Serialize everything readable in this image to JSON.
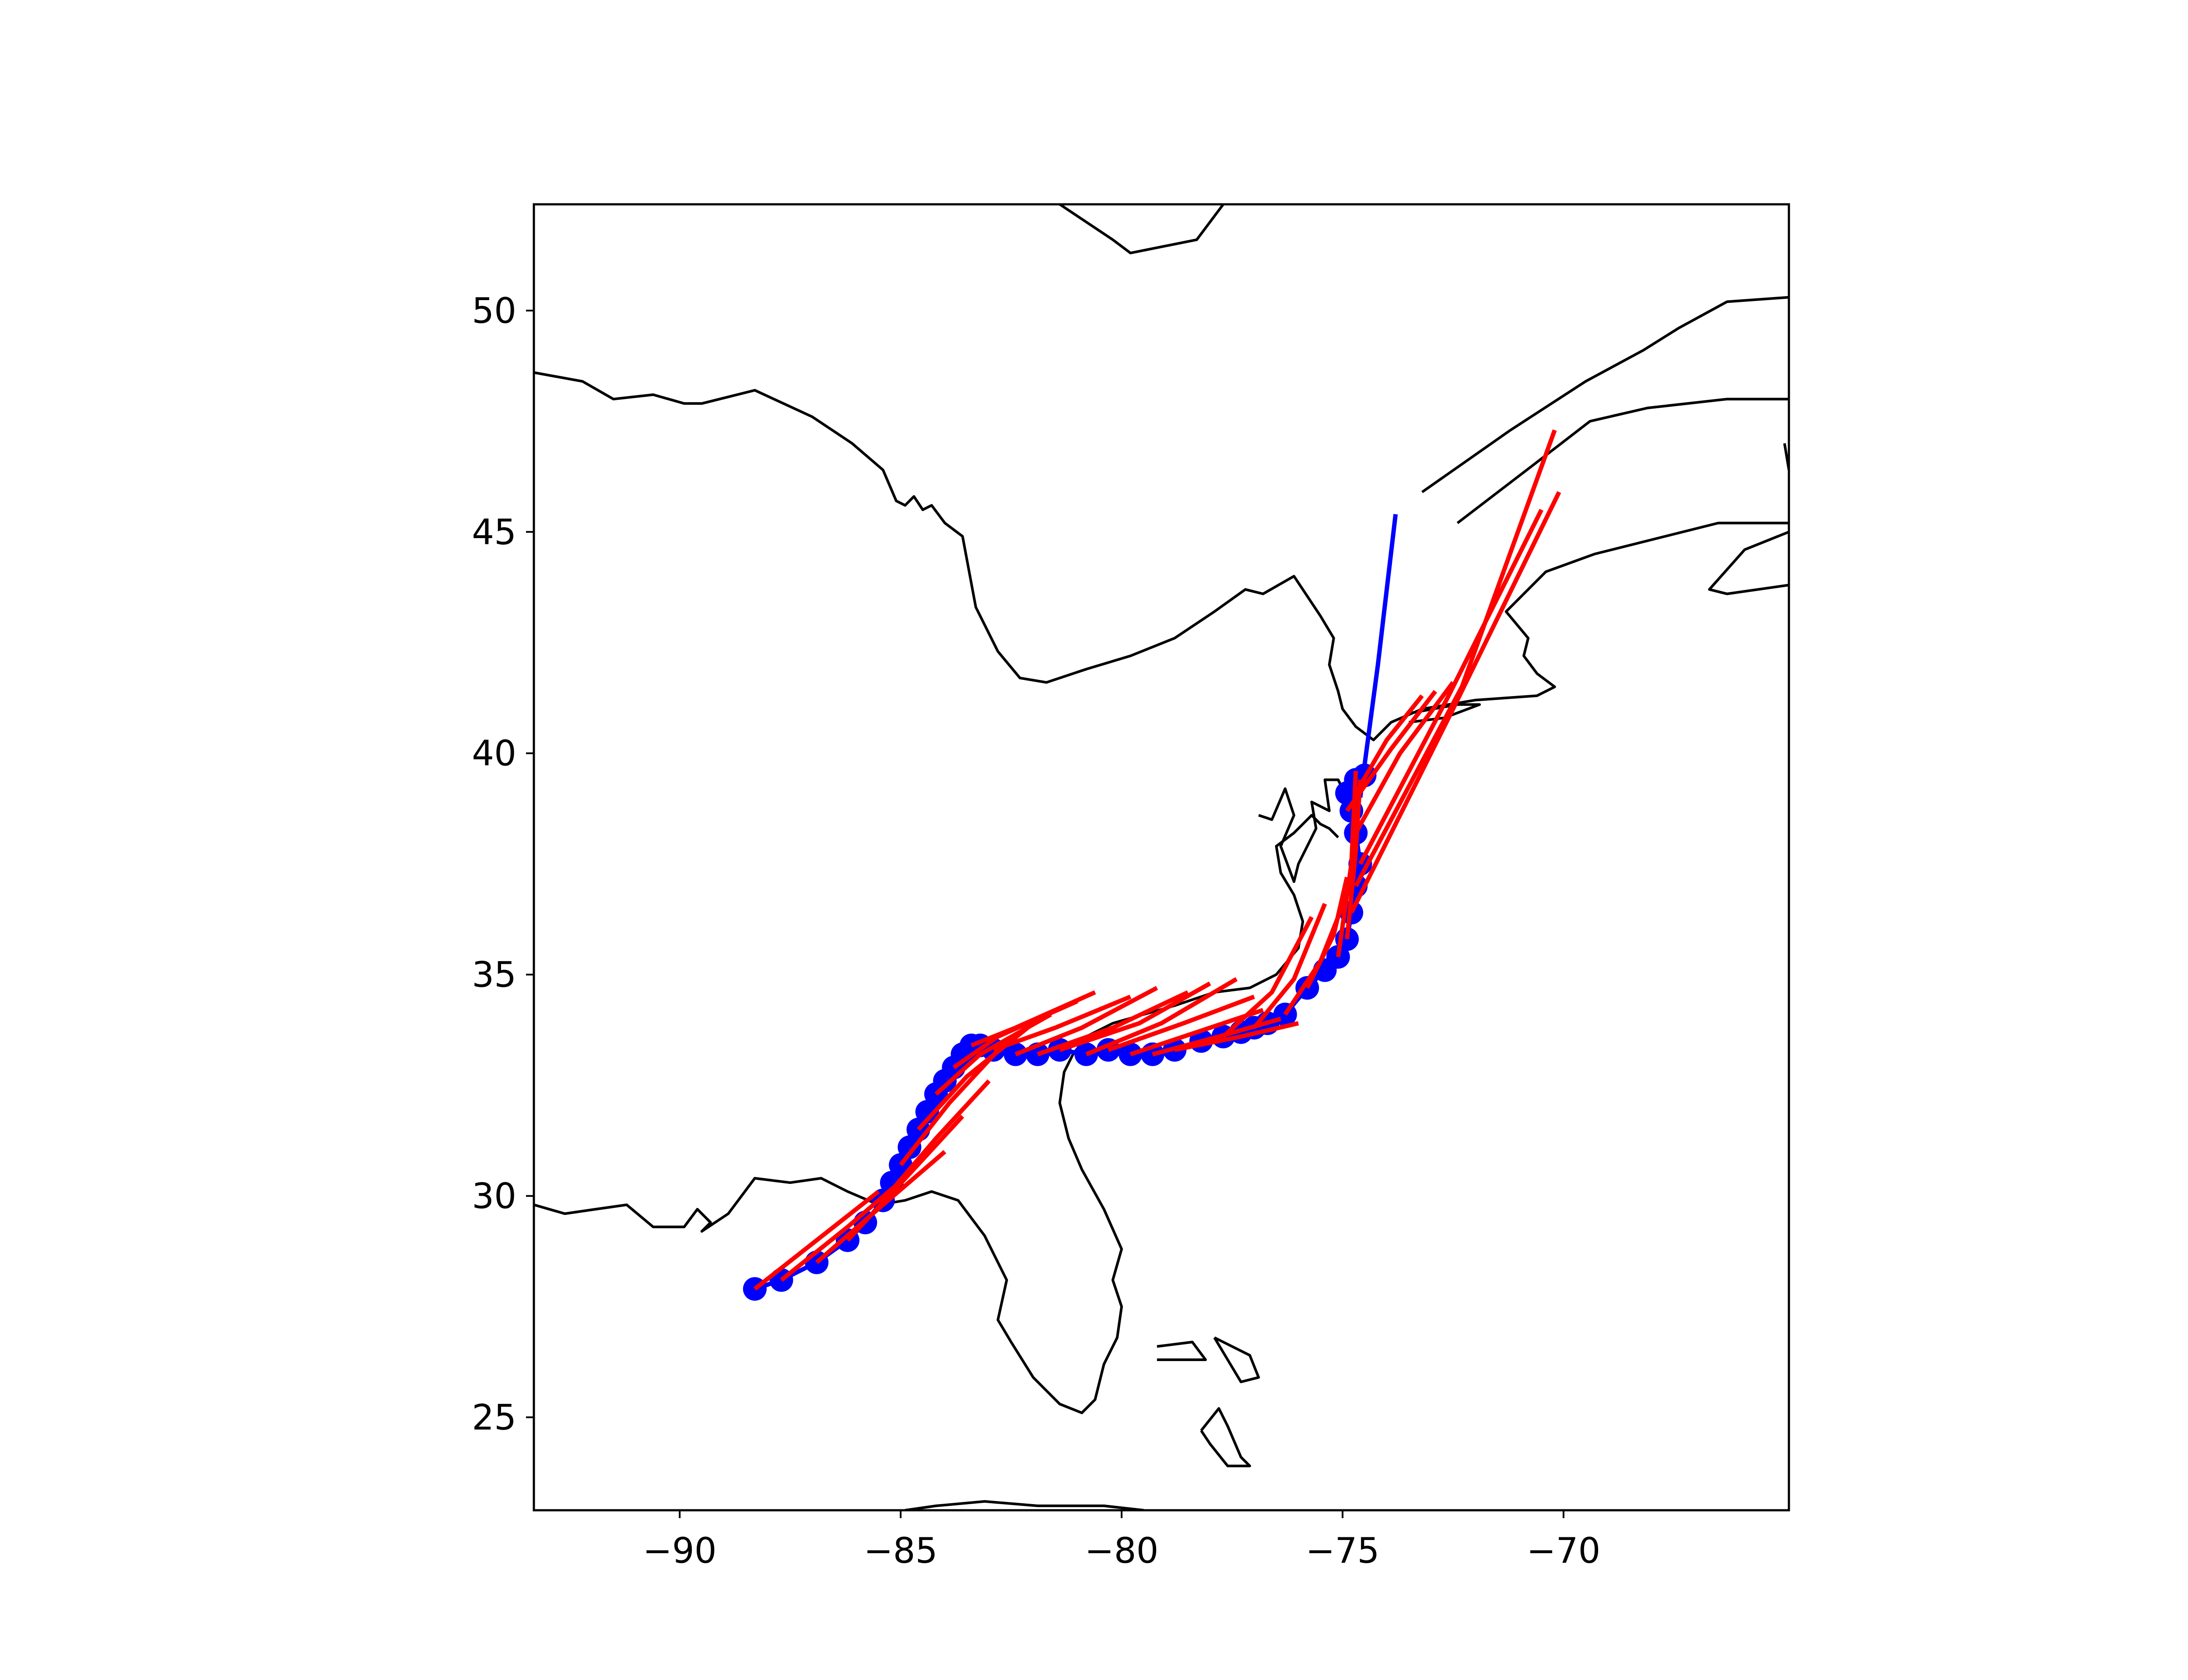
{
  "chart_data": {
    "type": "map-track",
    "title": "",
    "xlabel": "",
    "ylabel": "",
    "xlim": [
      -93.3,
      -64.9
    ],
    "ylim": [
      22.9,
      52.4
    ],
    "xticks": [
      -90,
      -85,
      -80,
      -75,
      -70
    ],
    "yticks": [
      25,
      30,
      35,
      40,
      45,
      50
    ],
    "xtick_labels": [
      "−90",
      "−85",
      "−80",
      "−75",
      "−70"
    ],
    "ytick_labels": [
      "25",
      "30",
      "35",
      "40",
      "45",
      "50"
    ],
    "grid": false,
    "legend": "none",
    "colors": {
      "observed": "#0000ff",
      "forecast": "#ff0000",
      "coast": "#000000",
      "frame": "#000000"
    },
    "observed_track": {
      "lon": [
        -88.3,
        -87.7,
        -86.9,
        -86.2,
        -85.8,
        -85.4,
        -85.2,
        -85.0,
        -84.8,
        -84.6,
        -84.4,
        -84.2,
        -84.0,
        -83.8,
        -83.6,
        -83.4,
        -83.2,
        -82.9,
        -82.4,
        -81.9,
        -81.4,
        -80.8,
        -80.3,
        -79.8,
        -79.3,
        -78.8,
        -78.2,
        -77.7,
        -77.3,
        -77.0,
        -76.7,
        -76.3,
        -75.8,
        -75.4,
        -75.1,
        -74.9,
        -74.8,
        -74.7,
        -74.6,
        -74.7,
        -74.8,
        -74.9,
        -74.7,
        -74.5
      ],
      "lat": [
        27.9,
        28.1,
        28.5,
        29.0,
        29.4,
        29.9,
        30.3,
        30.7,
        31.1,
        31.5,
        31.9,
        32.3,
        32.6,
        32.9,
        33.2,
        33.4,
        33.4,
        33.3,
        33.2,
        33.2,
        33.3,
        33.2,
        33.3,
        33.2,
        33.2,
        33.3,
        33.5,
        33.6,
        33.7,
        33.8,
        33.9,
        34.1,
        34.7,
        35.1,
        35.4,
        35.8,
        36.4,
        37.0,
        37.5,
        38.2,
        38.7,
        39.1,
        39.4,
        39.5
      ],
      "extension": {
        "lon": [
          -74.6,
          -74.2,
          -73.8
        ],
        "lat": [
          39.0,
          42.0,
          45.4
        ]
      }
    },
    "forecast_tracks": [
      {
        "lon": [
          -88.3,
          -86.9,
          -85.5
        ],
        "lat": [
          27.9,
          29.0,
          30.1
        ]
      },
      {
        "lon": [
          -87.7,
          -86.2,
          -84.8
        ],
        "lat": [
          28.1,
          29.3,
          30.5
        ]
      },
      {
        "lon": [
          -86.9,
          -85.4,
          -84.0
        ],
        "lat": [
          28.5,
          29.8,
          31.0
        ]
      },
      {
        "lon": [
          -86.2,
          -84.8,
          -83.6
        ],
        "lat": [
          29.0,
          30.5,
          31.8
        ]
      },
      {
        "lon": [
          -85.4,
          -84.2,
          -83.0
        ],
        "lat": [
          29.9,
          31.3,
          32.6
        ]
      },
      {
        "lon": [
          -85.0,
          -83.9,
          -82.6
        ],
        "lat": [
          30.7,
          32.1,
          33.5
        ]
      },
      {
        "lon": [
          -84.6,
          -83.5,
          -82.0
        ],
        "lat": [
          31.5,
          32.7,
          33.9
        ]
      },
      {
        "lon": [
          -84.2,
          -83.2,
          -81.6
        ],
        "lat": [
          32.3,
          33.2,
          34.1
        ]
      },
      {
        "lon": [
          -83.8,
          -82.8,
          -81.0
        ],
        "lat": [
          32.9,
          33.6,
          34.4
        ]
      },
      {
        "lon": [
          -83.4,
          -82.4,
          -80.6
        ],
        "lat": [
          33.4,
          33.8,
          34.6
        ]
      },
      {
        "lon": [
          -82.9,
          -81.5,
          -79.8
        ],
        "lat": [
          33.3,
          33.8,
          34.5
        ]
      },
      {
        "lon": [
          -82.4,
          -80.9,
          -79.2
        ],
        "lat": [
          33.2,
          33.8,
          34.7
        ]
      },
      {
        "lon": [
          -81.9,
          -80.2,
          -78.5
        ],
        "lat": [
          33.2,
          33.8,
          34.6
        ]
      },
      {
        "lon": [
          -81.4,
          -79.6,
          -78.0
        ],
        "lat": [
          33.3,
          33.9,
          34.8
        ]
      },
      {
        "lon": [
          -80.8,
          -79.1,
          -77.4
        ],
        "lat": [
          33.2,
          33.9,
          34.9
        ]
      },
      {
        "lon": [
          -80.3,
          -78.6,
          -77.0
        ],
        "lat": [
          33.3,
          33.9,
          34.5
        ]
      },
      {
        "lon": [
          -79.8,
          -78.3,
          -76.8
        ],
        "lat": [
          33.2,
          33.7,
          34.2
        ]
      },
      {
        "lon": [
          -79.3,
          -77.8,
          -76.4
        ],
        "lat": [
          33.2,
          33.6,
          34.0
        ]
      },
      {
        "lon": [
          -78.8,
          -77.3,
          -76.0
        ],
        "lat": [
          33.3,
          33.6,
          33.9
        ]
      },
      {
        "lon": [
          -77.7,
          -76.6,
          -75.7
        ],
        "lat": [
          33.6,
          34.6,
          36.3
        ]
      },
      {
        "lon": [
          -77.0,
          -76.1,
          -75.4
        ],
        "lat": [
          33.8,
          34.9,
          36.6
        ]
      },
      {
        "lon": [
          -76.3,
          -75.5,
          -74.9
        ],
        "lat": [
          34.1,
          35.3,
          36.8
        ]
      },
      {
        "lon": [
          -75.8,
          -75.2,
          -74.9
        ],
        "lat": [
          34.7,
          35.9,
          37.2
        ]
      },
      {
        "lon": [
          -75.1,
          -74.8,
          -74.7
        ],
        "lat": [
          35.4,
          37.5,
          39.6
        ]
      },
      {
        "lon": [
          -74.9,
          -74.7,
          -74.6
        ],
        "lat": [
          35.8,
          37.8,
          39.4
        ]
      },
      {
        "lon": [
          -74.8,
          -72.5,
          -70.1
        ],
        "lat": [
          36.4,
          41.0,
          45.9
        ]
      },
      {
        "lon": [
          -74.7,
          -72.3,
          -70.2
        ],
        "lat": [
          37.0,
          41.5,
          47.3
        ]
      },
      {
        "lon": [
          -74.6,
          -72.6,
          -70.5
        ],
        "lat": [
          37.5,
          41.3,
          45.5
        ]
      },
      {
        "lon": [
          -74.7,
          -73.7,
          -72.5
        ],
        "lat": [
          38.2,
          40.0,
          41.6
        ]
      },
      {
        "lon": [
          -74.9,
          -73.9,
          -72.9
        ],
        "lat": [
          38.7,
          40.1,
          41.4
        ]
      },
      {
        "lon": [
          -74.7,
          -74.0,
          -73.2
        ],
        "lat": [
          39.1,
          40.3,
          41.3
        ]
      }
    ],
    "coastlines": [
      {
        "lon": [
          -93.3,
          -92.2,
          -91.5,
          -90.6,
          -89.9,
          -89.5,
          -88.3,
          -87.0,
          -86.1,
          -85.4,
          -85.1,
          -84.9,
          -84.7,
          -84.5,
          -84.3,
          -84.0,
          -83.6,
          -83.3,
          -82.8,
          -82.3,
          -81.7,
          -80.8,
          -79.8,
          -78.8,
          -77.9,
          -77.2,
          -76.8,
          -76.1,
          -75.5,
          -75.2,
          -75.3,
          -75.1,
          -75.0,
          -74.7,
          -74.3,
          -73.9,
          -73.2,
          -72.0,
          -70.6,
          -70.2,
          -70.6,
          -70.9,
          -70.8,
          -71.3,
          -70.8,
          -70.4,
          -69.3,
          -67.7,
          -66.5,
          -65.4,
          -64.9
        ],
        "lat": [
          48.6,
          48.4,
          48.0,
          48.1,
          47.9,
          47.9,
          48.2,
          47.6,
          47.0,
          46.4,
          45.7,
          45.6,
          45.8,
          45.5,
          45.6,
          45.2,
          44.9,
          43.3,
          42.3,
          41.7,
          41.6,
          41.9,
          42.2,
          42.6,
          43.2,
          43.7,
          43.6,
          44.0,
          43.1,
          42.6,
          42.0,
          41.4,
          41.0,
          40.6,
          40.3,
          40.7,
          41.0,
          41.2,
          41.3,
          41.5,
          41.8,
          42.2,
          42.6,
          43.2,
          43.7,
          44.1,
          44.5,
          44.9,
          45.2,
          45.2,
          45.2
        ]
      },
      {
        "lon": [
          -93.3,
          -92.6,
          -91.9,
          -91.2,
          -90.6,
          -89.9,
          -89.6,
          -89.3,
          -89.5,
          -88.9,
          -88.3,
          -87.5,
          -86.8,
          -86.2,
          -85.5,
          -84.9,
          -84.3,
          -83.7,
          -83.1,
          -82.6,
          -82.8,
          -82.5,
          -82.0,
          -81.4,
          -80.9,
          -80.6,
          -80.4,
          -80.1,
          -80.0,
          -80.2,
          -80.0,
          -80.4,
          -80.9,
          -81.2,
          -81.4,
          -81.3,
          -81.1,
          -80.8,
          -80.2,
          -79.5,
          -78.8,
          -77.9,
          -77.1,
          -76.5,
          -76.0,
          -75.9,
          -76.1,
          -76.4,
          -76.5,
          -76.1,
          -75.9,
          -75.7,
          -75.5,
          -75.3,
          -75.1
        ],
        "lat": [
          29.8,
          29.6,
          29.7,
          29.8,
          29.3,
          29.3,
          29.7,
          29.4,
          29.2,
          29.6,
          30.4,
          30.3,
          30.4,
          30.1,
          29.8,
          29.9,
          30.1,
          29.9,
          29.1,
          28.1,
          27.2,
          26.7,
          25.9,
          25.3,
          25.1,
          25.4,
          26.2,
          26.8,
          27.5,
          28.1,
          28.8,
          29.7,
          30.6,
          31.3,
          32.1,
          32.8,
          33.2,
          33.6,
          33.9,
          34.1,
          34.3,
          34.6,
          34.7,
          35.0,
          35.6,
          36.2,
          36.8,
          37.3,
          37.9,
          38.2,
          38.4,
          38.6,
          38.4,
          38.3,
          38.1
        ]
      },
      {
        "lon": [
          -76.9,
          -76.6,
          -76.3,
          -76.1,
          -76.4,
          -76.1,
          -76.0,
          -75.6,
          -75.7,
          -75.3,
          -75.4,
          -75.1,
          -74.9
        ],
        "lat": [
          38.6,
          38.5,
          39.2,
          38.6,
          37.9,
          37.1,
          37.5,
          38.3,
          38.9,
          38.7,
          39.4,
          39.4,
          39.0
        ]
      },
      {
        "lon": [
          -73.5,
          -72.4,
          -71.9,
          -72.7,
          -73.5
        ],
        "lat": [
          40.9,
          41.1,
          41.1,
          40.8,
          40.7
        ]
      },
      {
        "lon": [
          -64.9,
          -66.3,
          -67.4,
          -68.2,
          -69.5,
          -71.2,
          -73.2
        ],
        "lat": [
          50.3,
          50.2,
          49.6,
          49.1,
          48.4,
          47.3,
          45.9
        ]
      },
      {
        "lon": [
          -72.4,
          -70.7,
          -69.4,
          -68.1,
          -66.3,
          -64.9
        ],
        "lat": [
          45.2,
          46.5,
          47.5,
          47.8,
          48.0,
          48.0
        ]
      },
      {
        "lon": [
          -64.9,
          -65.9,
          -66.7,
          -66.3,
          -64.9
        ],
        "lat": [
          45.0,
          44.6,
          43.7,
          43.6,
          43.8
        ]
      },
      {
        "lon": [
          -65.0,
          -64.9
        ],
        "lat": [
          47.0,
          46.4
        ]
      },
      {
        "lon": [
          -81.4,
          -80.2,
          -79.8,
          -78.3,
          -77.7
        ],
        "lat": [
          52.4,
          51.6,
          51.3,
          51.6,
          52.4
        ]
      },
      {
        "lon": [
          -79.2,
          -78.4,
          -78.1,
          -79.2
        ],
        "lat": [
          26.6,
          26.7,
          26.3,
          26.3
        ]
      },
      {
        "lon": [
          -77.9,
          -77.1,
          -76.9,
          -77.3,
          -77.6,
          -77.9
        ],
        "lat": [
          26.8,
          26.4,
          25.9,
          25.8,
          26.3,
          26.8
        ]
      },
      {
        "lon": [
          -78.2,
          -77.8,
          -77.6,
          -77.3,
          -77.1,
          -77.6,
          -78.0,
          -78.2
        ],
        "lat": [
          24.7,
          25.2,
          24.8,
          24.1,
          23.9,
          23.9,
          24.4,
          24.7
        ]
      },
      {
        "lon": [
          -84.9,
          -84.2,
          -83.1,
          -81.9,
          -80.4,
          -79.5
        ],
        "lat": [
          22.9,
          23.0,
          23.1,
          23.0,
          23.0,
          22.9
        ]
      }
    ]
  }
}
